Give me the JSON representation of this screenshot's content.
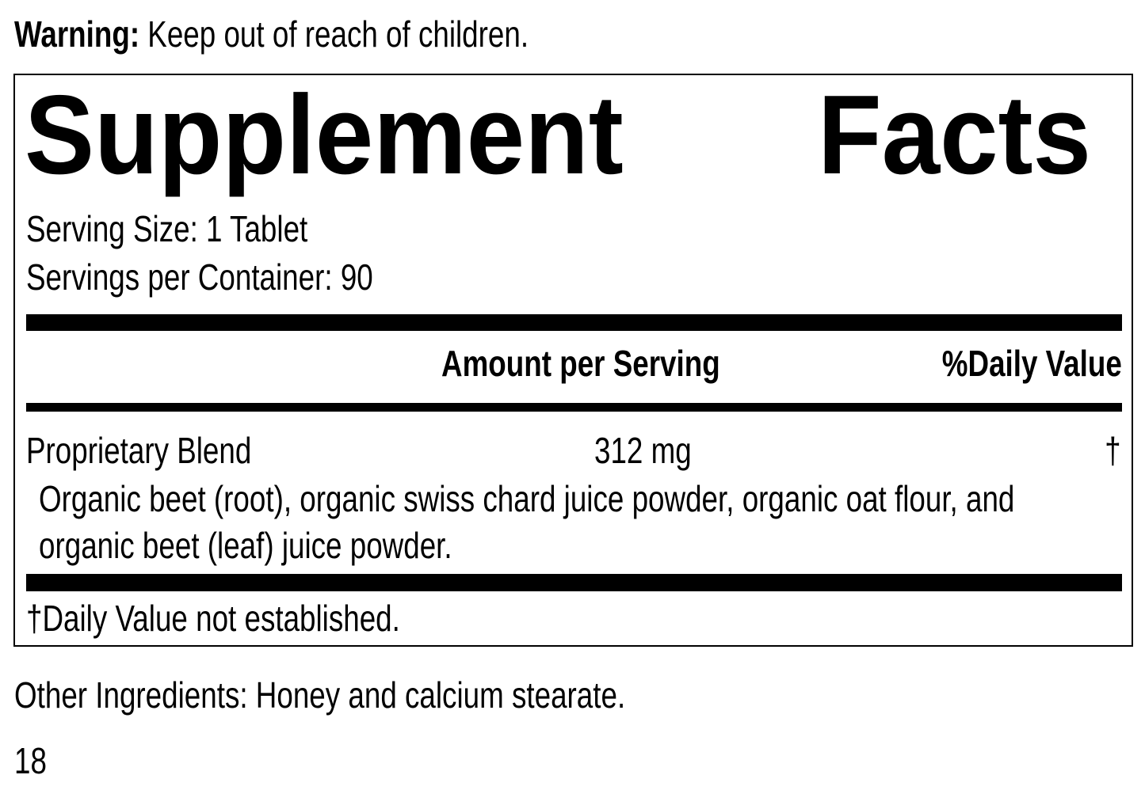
{
  "warning": {
    "label": "Warning:",
    "text": " Keep out of reach of children."
  },
  "panel": {
    "title_word1": "Supplement",
    "title_word2": "Facts",
    "serving_size": "Serving Size: 1 Tablet",
    "servings_per_container": "Servings per Container: 90",
    "header": {
      "amount": "Amount per Serving",
      "daily_value": "%Daily Value"
    },
    "rows": [
      {
        "name": "Proprietary Blend",
        "amount": "312 mg",
        "dv": "†",
        "ingredients_line1": "Organic beet (root), organic swiss chard juice powder, organic oat flour, and",
        "ingredients_line2": "organic beet (leaf) juice powder."
      }
    ],
    "footnote": "†Daily Value not established."
  },
  "other_ingredients": "Other Ingredients: Honey and calcium stearate.",
  "page_number": "18"
}
